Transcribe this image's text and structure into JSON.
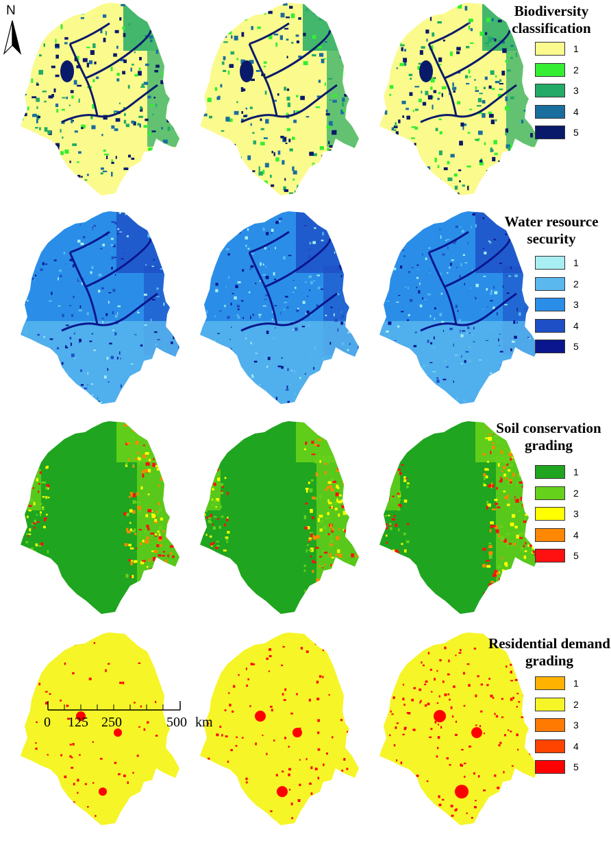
{
  "north_arrow": {
    "letter": "N"
  },
  "panels": [
    {
      "id": "biodiversity",
      "title_lines": [
        "Biodiversity",
        "classification"
      ],
      "legend": [
        {
          "label": "1",
          "color": "#fbfb8d"
        },
        {
          "label": "2",
          "color": "#33ee33"
        },
        {
          "label": "3",
          "color": "#22aa66"
        },
        {
          "label": "4",
          "color": "#1a6e9e"
        },
        {
          "label": "5",
          "color": "#0a1a6a"
        }
      ]
    },
    {
      "id": "water",
      "title_lines": [
        "Water resource",
        "security"
      ],
      "legend": [
        {
          "label": "1",
          "color": "#a8eef2"
        },
        {
          "label": "2",
          "color": "#5ab8ee"
        },
        {
          "label": "3",
          "color": "#2a8ee8"
        },
        {
          "label": "4",
          "color": "#1e4fc6"
        },
        {
          "label": "5",
          "color": "#0a168e"
        }
      ]
    },
    {
      "id": "soil",
      "title_lines": [
        "Soil conservation",
        "grading"
      ],
      "legend": [
        {
          "label": "1",
          "color": "#1fa51f"
        },
        {
          "label": "2",
          "color": "#66d11a"
        },
        {
          "label": "3",
          "color": "#ffff00"
        },
        {
          "label": "4",
          "color": "#ff8800"
        },
        {
          "label": "5",
          "color": "#ff1111"
        }
      ]
    },
    {
      "id": "residential",
      "title_lines": [
        "Residential demand",
        "grading"
      ],
      "legend": [
        {
          "label": "1",
          "color": "#ffb300"
        },
        {
          "label": "2",
          "color": "#f5f528"
        },
        {
          "label": "3",
          "color": "#ff7a00"
        },
        {
          "label": "4",
          "color": "#ff4400"
        },
        {
          "label": "5",
          "color": "#ff0000"
        }
      ]
    }
  ],
  "scale_bar": {
    "ticks": [
      "0",
      "125",
      "250",
      "500"
    ],
    "unit": "km"
  }
}
